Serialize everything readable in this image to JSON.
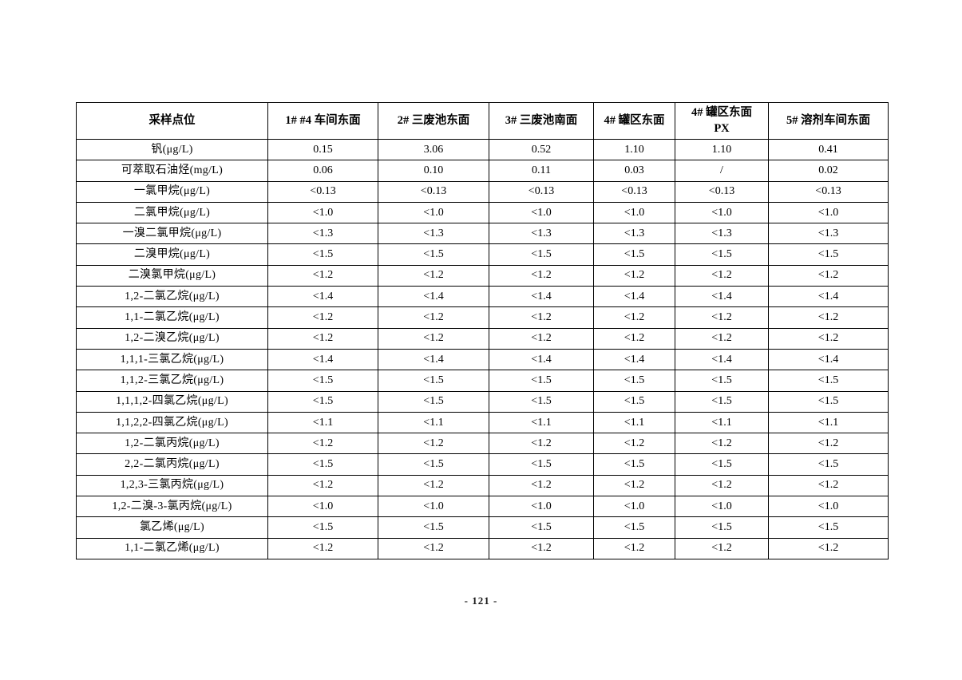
{
  "page": {
    "footer_page_number": "- 121 -"
  },
  "table": {
    "columns": [
      "采样点位",
      "1# #4 车间东面",
      "2#  三废池东面",
      "3#  三废池南面",
      "4#  罐区东面",
      "4#  罐区东面\nPX",
      "5#  溶剂车间东面"
    ],
    "rows": [
      {
        "label": "钒(μg/L)",
        "values": [
          "0.15",
          "3.06",
          "0.52",
          "1.10",
          "1.10",
          "0.41"
        ]
      },
      {
        "label": "可萃取石油烃(mg/L)",
        "values": [
          "0.06",
          "0.10",
          "0.11",
          "0.03",
          "/",
          "0.02"
        ]
      },
      {
        "label": "一氯甲烷(μg/L)",
        "values": [
          "<0.13",
          "<0.13",
          "<0.13",
          "<0.13",
          "<0.13",
          "<0.13"
        ]
      },
      {
        "label": "二氯甲烷(μg/L)",
        "values": [
          "<1.0",
          "<1.0",
          "<1.0",
          "<1.0",
          "<1.0",
          "<1.0"
        ]
      },
      {
        "label": "一溴二氯甲烷(μg/L)",
        "values": [
          "<1.3",
          "<1.3",
          "<1.3",
          "<1.3",
          "<1.3",
          "<1.3"
        ]
      },
      {
        "label": "二溴甲烷(μg/L)",
        "values": [
          "<1.5",
          "<1.5",
          "<1.5",
          "<1.5",
          "<1.5",
          "<1.5"
        ]
      },
      {
        "label": "二溴氯甲烷(μg/L)",
        "values": [
          "<1.2",
          "<1.2",
          "<1.2",
          "<1.2",
          "<1.2",
          "<1.2"
        ]
      },
      {
        "label": "1,2-二氯乙烷(μg/L)",
        "values": [
          "<1.4",
          "<1.4",
          "<1.4",
          "<1.4",
          "<1.4",
          "<1.4"
        ]
      },
      {
        "label": "1,1-二氯乙烷(μg/L)",
        "values": [
          "<1.2",
          "<1.2",
          "<1.2",
          "<1.2",
          "<1.2",
          "<1.2"
        ]
      },
      {
        "label": "1,2-二溴乙烷(μg/L)",
        "values": [
          "<1.2",
          "<1.2",
          "<1.2",
          "<1.2",
          "<1.2",
          "<1.2"
        ]
      },
      {
        "label": "1,1,1-三氯乙烷(μg/L)",
        "values": [
          "<1.4",
          "<1.4",
          "<1.4",
          "<1.4",
          "<1.4",
          "<1.4"
        ]
      },
      {
        "label": "1,1,2-三氯乙烷(μg/L)",
        "values": [
          "<1.5",
          "<1.5",
          "<1.5",
          "<1.5",
          "<1.5",
          "<1.5"
        ]
      },
      {
        "label": "1,1,1,2-四氯乙烷(μg/L)",
        "values": [
          "<1.5",
          "<1.5",
          "<1.5",
          "<1.5",
          "<1.5",
          "<1.5"
        ]
      },
      {
        "label": "1,1,2,2-四氯乙烷(μg/L)",
        "values": [
          "<1.1",
          "<1.1",
          "<1.1",
          "<1.1",
          "<1.1",
          "<1.1"
        ]
      },
      {
        "label": "1,2-二氯丙烷(μg/L)",
        "values": [
          "<1.2",
          "<1.2",
          "<1.2",
          "<1.2",
          "<1.2",
          "<1.2"
        ]
      },
      {
        "label": "2,2-二氯丙烷(μg/L)",
        "values": [
          "<1.5",
          "<1.5",
          "<1.5",
          "<1.5",
          "<1.5",
          "<1.5"
        ]
      },
      {
        "label": "1,2,3-三氯丙烷(μg/L)",
        "values": [
          "<1.2",
          "<1.2",
          "<1.2",
          "<1.2",
          "<1.2",
          "<1.2"
        ]
      },
      {
        "label": "1,2-二溴-3-氯丙烷(μg/L)",
        "values": [
          "<1.0",
          "<1.0",
          "<1.0",
          "<1.0",
          "<1.0",
          "<1.0"
        ]
      },
      {
        "label": "氯乙烯(μg/L)",
        "values": [
          "<1.5",
          "<1.5",
          "<1.5",
          "<1.5",
          "<1.5",
          "<1.5"
        ]
      },
      {
        "label": "1,1-二氯乙烯(μg/L)",
        "values": [
          "<1.2",
          "<1.2",
          "<1.2",
          "<1.2",
          "<1.2",
          "<1.2"
        ]
      }
    ]
  }
}
